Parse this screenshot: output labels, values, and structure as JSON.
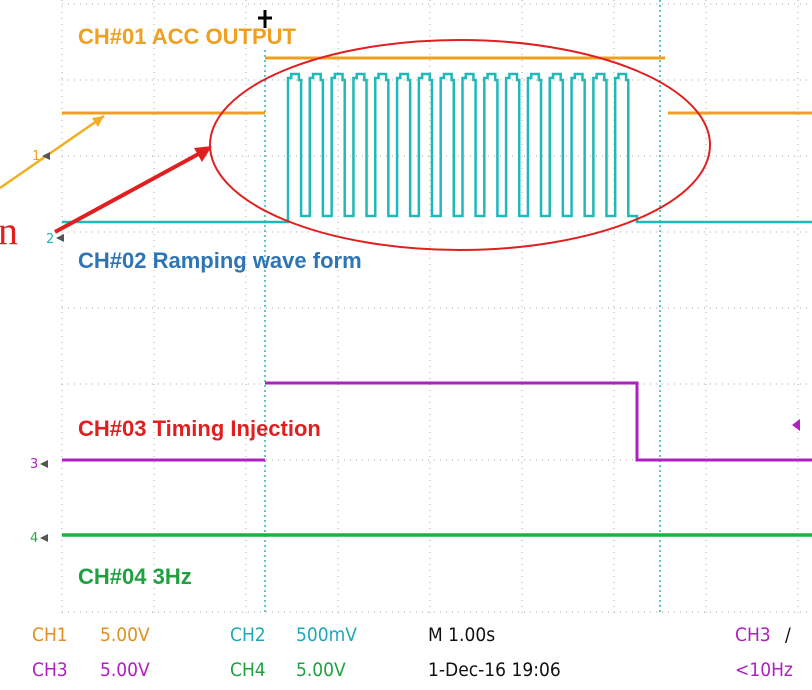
{
  "screen": {
    "cropped_text": "n",
    "channel_labels": [
      "CH#01 ACC OUTPUT",
      "CH#02 Ramping wave form",
      "CH#03 Timing Injection",
      "CH#04 3Hz"
    ],
    "channel_markers": [
      "1",
      "2",
      "3",
      "4"
    ],
    "status": {
      "row1": [
        "CH1",
        "5.00V",
        "CH2",
        "500mV",
        "M 1.00s",
        "CH3",
        "/"
      ],
      "row2": [
        "CH3",
        "5.00V",
        "CH4",
        "5.00V",
        "1-Dec-16 19:06",
        "<10Hz"
      ]
    }
  }
}
